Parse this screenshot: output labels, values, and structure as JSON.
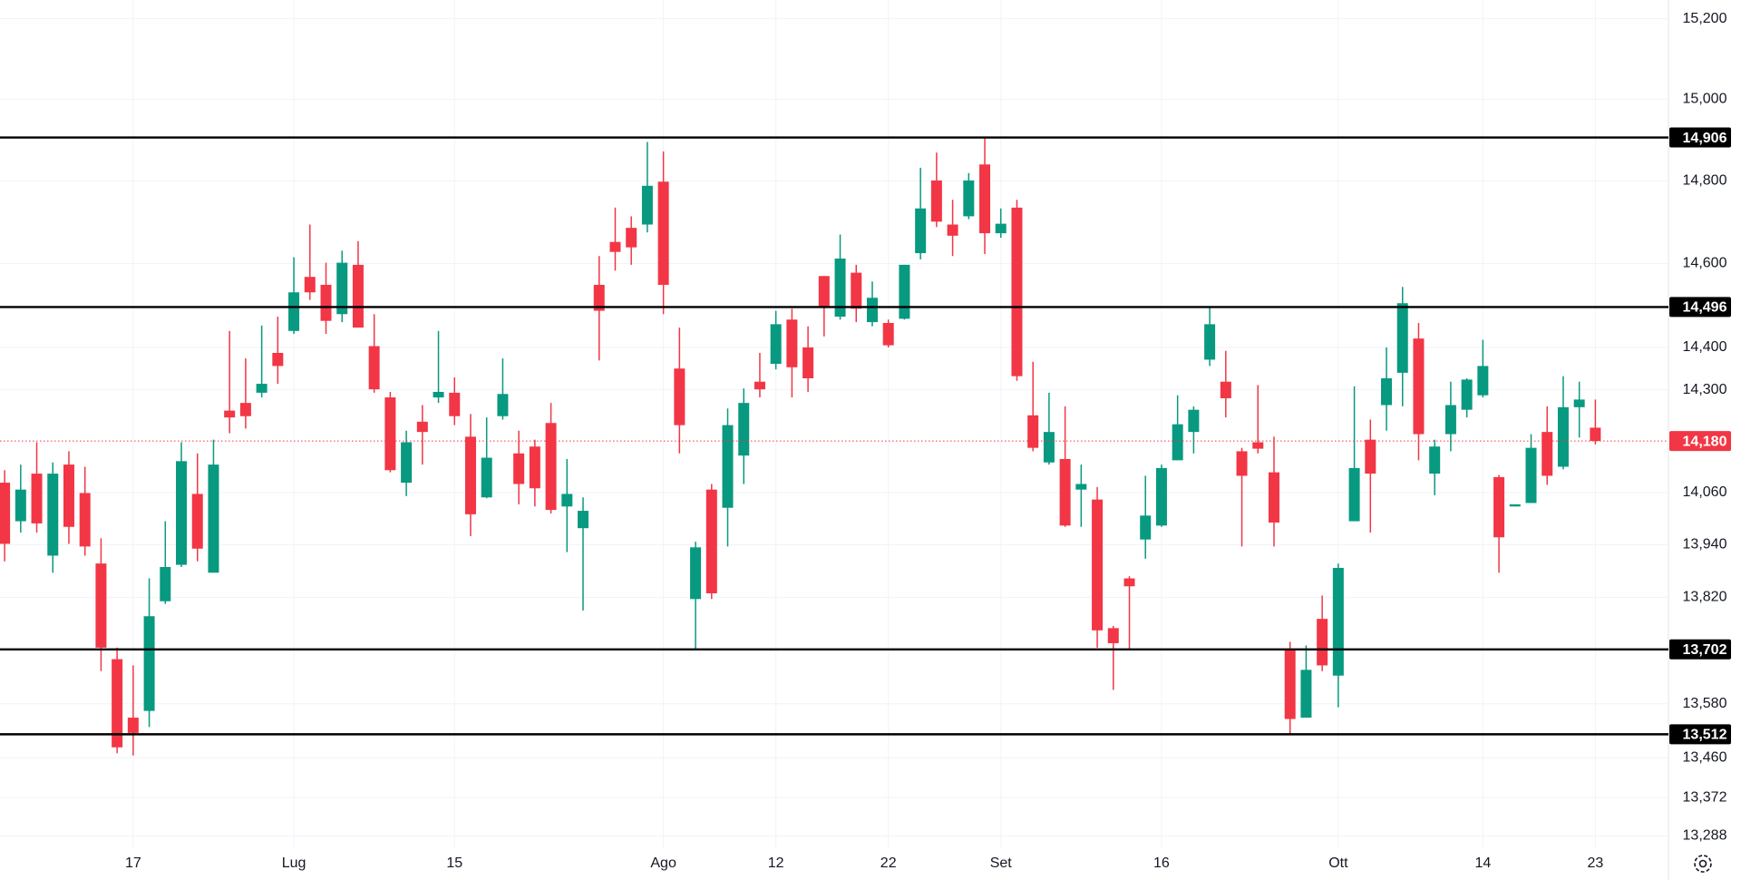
{
  "chart_data": {
    "type": "candlestick",
    "categories": [
      null,
      null,
      null,
      null,
      null,
      null,
      null,
      null,
      "17",
      null,
      null,
      null,
      null,
      null,
      null,
      null,
      null,
      null,
      "Lug",
      null,
      null,
      null,
      null,
      null,
      null,
      null,
      null,
      null,
      "15",
      null,
      null,
      null,
      null,
      null,
      null,
      null,
      null,
      null,
      null,
      null,
      null,
      "Ago",
      null,
      null,
      null,
      null,
      null,
      null,
      "12",
      null,
      null,
      null,
      null,
      null,
      null,
      "22",
      null,
      null,
      null,
      null,
      null,
      null,
      "Set",
      null,
      null,
      null,
      null,
      null,
      null,
      null,
      null,
      null,
      "16",
      null,
      null,
      null,
      null,
      null,
      null,
      null,
      null,
      null,
      null,
      "Ott",
      null,
      null,
      null,
      null,
      null,
      null,
      null,
      null,
      "14",
      null,
      null,
      null,
      null,
      null,
      null,
      "23"
    ],
    "open": [
      14083,
      13994,
      14104,
      13915,
      14125,
      14059,
      13897,
      13680,
      13549,
      13564,
      13811,
      13894,
      14057,
      13876,
      14251,
      14269,
      14293,
      14387,
      14439,
      14568,
      14549,
      14479,
      14597,
      14403,
      14282,
      14083,
      14225,
      14282,
      14293,
      14190,
      14049,
      14238,
      14151,
      14167,
      14222,
      14028,
      13978,
      14549,
      14652,
      14686,
      14694,
      14798,
      14350,
      13816,
      14067,
      14025,
      14146,
      14319,
      14361,
      14466,
      14400,
      14570,
      14473,
      14578,
      14460,
      14458,
      14468,
      14625,
      14801,
      14694,
      14714,
      14840,
      14673,
      14735,
      14240,
      14130,
      14138,
      14067,
      14044,
      13750,
      13863,
      13952,
      13984,
      14135,
      14201,
      14371,
      14319,
      14156,
      14177,
      14107,
      13700,
      13549,
      13771,
      13643,
      13994,
      14183,
      14264,
      14340,
      14421,
      14104,
      14196,
      14253,
      14287,
      14096,
      14028,
      14036,
      14201,
      14120,
      14259,
      14211
    ],
    "high": [
      14112,
      14125,
      14177,
      14130,
      14156,
      14120,
      13955,
      13706,
      13666,
      13863,
      13994,
      14177,
      14151,
      14183,
      14439,
      14374,
      14452,
      14473,
      14615,
      14694,
      14602,
      14631,
      14654,
      14479,
      14295,
      14204,
      14264,
      14439,
      14329,
      14243,
      14235,
      14374,
      14204,
      14183,
      14269,
      14138,
      14049,
      14618,
      14735,
      14714,
      14895,
      14872,
      14447,
      13947,
      14080,
      14256,
      14303,
      14387,
      14487,
      14492,
      14450,
      14570,
      14670,
      14597,
      14557,
      14466,
      14597,
      14832,
      14869,
      14754,
      14819,
      14906,
      14733,
      14754,
      14366,
      14293,
      14261,
      14125,
      14073,
      13755,
      13868,
      14099,
      14125,
      14287,
      14261,
      14496,
      14392,
      14164,
      14311,
      14190,
      13719,
      13711,
      13824,
      13897,
      14308,
      14230,
      14400,
      14544,
      14458,
      14183,
      14319,
      14327,
      14418,
      14101,
      14033,
      14196,
      14261,
      14332,
      14319,
      14277
    ],
    "low": [
      13902,
      13968,
      13968,
      13876,
      13942,
      13915,
      13653,
      13470,
      13465,
      13528,
      13805,
      13889,
      13902,
      13876,
      14198,
      14209,
      14282,
      14314,
      14432,
      14513,
      14432,
      14460,
      14447,
      14293,
      14107,
      14052,
      14125,
      14269,
      14217,
      13960,
      14047,
      14230,
      14033,
      14028,
      14012,
      13923,
      13790,
      14369,
      14583,
      14597,
      14675,
      14479,
      14151,
      13702,
      13816,
      13936,
      14080,
      14282,
      14348,
      14282,
      14295,
      14426,
      14466,
      14460,
      14450,
      14400,
      14466,
      14610,
      14688,
      14618,
      14707,
      14623,
      14662,
      14321,
      14156,
      14125,
      13981,
      13981,
      13706,
      13611,
      13702,
      13908,
      13981,
      14135,
      14151,
      14356,
      14235,
      13936,
      14151,
      13936,
      13512,
      13549,
      13653,
      13572,
      13994,
      13968,
      14204,
      14261,
      14135,
      14054,
      14156,
      14235,
      14282,
      13876,
      14028,
      14036,
      14078,
      14114,
      14188,
      14172
    ],
    "close": [
      13942,
      14067,
      13989,
      14104,
      13981,
      13936,
      13706,
      13483,
      13515,
      13777,
      13889,
      14133,
      13931,
      14125,
      14235,
      14238,
      14314,
      14356,
      14531,
      14531,
      14463,
      14602,
      14447,
      14301,
      14112,
      14177,
      14201,
      14295,
      14238,
      14010,
      14141,
      14290,
      14080,
      14070,
      14020,
      14057,
      14018,
      14487,
      14628,
      14639,
      14788,
      14549,
      14217,
      13934,
      13829,
      14217,
      14269,
      14301,
      14455,
      14353,
      14327,
      14497,
      14612,
      14492,
      14518,
      14405,
      14597,
      14733,
      14701,
      14667,
      14801,
      14673,
      14696,
      14332,
      14164,
      14201,
      13984,
      14080,
      13745,
      13716,
      13845,
      14007,
      14117,
      14219,
      14253,
      14455,
      14280,
      14099,
      14162,
      13991,
      13546,
      13656,
      13666,
      13887,
      14117,
      14104,
      14327,
      14505,
      14196,
      14167,
      14264,
      14324,
      14356,
      13957,
      14033,
      14164,
      14099,
      14259,
      14277,
      14180
    ],
    "up_color": "#089981",
    "down_color": "#f23645",
    "log_scale": true,
    "grid": true,
    "ylim": [
      13259,
      15247
    ],
    "yticks": [
      {
        "value": 15200,
        "label": "15,200"
      },
      {
        "value": 15000,
        "label": "15,000"
      },
      {
        "value": 14800,
        "label": "14,800"
      },
      {
        "value": 14600,
        "label": "14,600"
      },
      {
        "value": 14400,
        "label": "14,400"
      },
      {
        "value": 14300,
        "label": "14,300"
      },
      {
        "value": 14060,
        "label": "14,060"
      },
      {
        "value": 13940,
        "label": "13,940"
      },
      {
        "value": 13820,
        "label": "13,820"
      },
      {
        "value": 13580,
        "label": "13,580"
      },
      {
        "value": 13460,
        "label": "13,460"
      },
      {
        "value": 13372,
        "label": "13,372"
      },
      {
        "value": 13288,
        "label": "13,288"
      }
    ],
    "price_lines": [
      {
        "value": 14906,
        "label": "14,906"
      },
      {
        "value": 14496,
        "label": "14,496"
      },
      {
        "value": 13702,
        "label": "13,702"
      },
      {
        "value": 13512,
        "label": "13,512"
      }
    ],
    "price_line_color": "#000000",
    "last_price": {
      "value": 14180,
      "label": "14,180"
    }
  }
}
